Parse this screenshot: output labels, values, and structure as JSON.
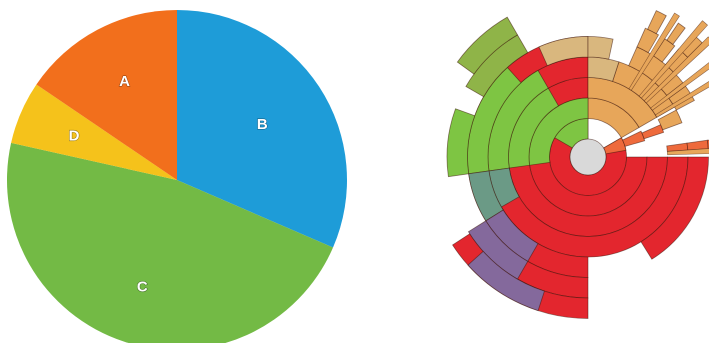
{
  "chart_data": [
    {
      "type": "pie",
      "title": "",
      "categories": [
        "A",
        "B",
        "C",
        "D"
      ],
      "values": [
        15.5,
        31.5,
        47.0,
        6.0
      ],
      "start_angle_deg": 0,
      "slice_order_clockwise": [
        "B",
        "C",
        "D",
        "A"
      ],
      "colors": {
        "A": "#f26f1c",
        "B": "#1e9cd8",
        "C": "#73ba45",
        "D": "#f5c21b"
      }
    },
    {
      "type": "sunburst",
      "title": "",
      "center_color": "#d9d9d9",
      "segments": [
        {
          "ring": 1,
          "start": 60,
          "end": 360,
          "color": "#e3262e"
        },
        {
          "ring": 2,
          "start": 90,
          "end": 360,
          "color": "#e3262e"
        },
        {
          "ring": 3,
          "start": 90,
          "end": 360,
          "color": "#e3262e"
        },
        {
          "ring": 4,
          "start": 90,
          "end": 360,
          "color": "#e3262e"
        },
        {
          "ring": 5,
          "start": 90,
          "end": 148,
          "color": "#e3262e"
        },
        {
          "ring": 5,
          "start": 180,
          "end": 360,
          "color": "#e3262e"
        },
        {
          "ring": 6,
          "start": 180,
          "end": 237,
          "color": "#e3262e"
        },
        {
          "ring": 7,
          "start": 180,
          "end": 237,
          "color": "#e3262e"
        },
        {
          "ring": 1,
          "start": 60,
          "end": 80,
          "color": "#ee6a3c"
        },
        {
          "ring": 2,
          "start": 64,
          "end": 74,
          "color": "#ee6a3c"
        },
        {
          "ring": 3,
          "start": 66,
          "end": 72,
          "color": "#ee6a3c"
        },
        {
          "ring": 4,
          "start": 82,
          "end": 86,
          "color": "#ee6a3c"
        },
        {
          "ring": 5,
          "start": 82,
          "end": 86,
          "color": "#ee6a3c"
        },
        {
          "ring": 6,
          "start": 82,
          "end": 86,
          "color": "#ee6a3c"
        },
        {
          "ring": 7,
          "start": 82,
          "end": 86,
          "color": "#ee6a3c"
        },
        {
          "ring": 2,
          "start": 0,
          "end": 60,
          "color": "#e7a65a"
        },
        {
          "ring": 3,
          "start": 0,
          "end": 60,
          "color": "#e7a65a"
        },
        {
          "ring": 4,
          "start": 18,
          "end": 60,
          "color": "#e7a65a"
        },
        {
          "ring": 5,
          "start": 24,
          "end": 52,
          "color": "#e7a65a"
        },
        {
          "ring": 6,
          "start": 24,
          "end": 30,
          "color": "#e7a65a"
        },
        {
          "ring": 6,
          "start": 33,
          "end": 38,
          "color": "#e7a65a"
        },
        {
          "ring": 6,
          "start": 40,
          "end": 46,
          "color": "#e7a65a"
        },
        {
          "ring": 7,
          "start": 25,
          "end": 29,
          "color": "#e7a65a"
        },
        {
          "ring": 7,
          "start": 41,
          "end": 45,
          "color": "#e7a65a"
        },
        {
          "ring": 7,
          "start": 34,
          "end": 37,
          "color": "#e7a65a"
        },
        {
          "ring": 5,
          "start": 54,
          "end": 62,
          "color": "#e7a65a"
        },
        {
          "ring": 4,
          "start": 62,
          "end": 70,
          "color": "#e7a65a"
        },
        {
          "ring": 4,
          "start": 0,
          "end": 18,
          "color": "#d9b77e"
        },
        {
          "ring": 5,
          "start": 336,
          "end": 360,
          "color": "#d9b77e"
        },
        {
          "ring": 5,
          "start": 0,
          "end": 12,
          "color": "#d9b77e"
        },
        {
          "ring": 1,
          "start": 300,
          "end": 360,
          "color": "#7ec543"
        },
        {
          "ring": 2,
          "start": 262,
          "end": 360,
          "color": "#7ec543"
        },
        {
          "ring": 3,
          "start": 262,
          "end": 330,
          "color": "#7ec543"
        },
        {
          "ring": 4,
          "start": 262,
          "end": 330,
          "color": "#7ec543"
        },
        {
          "ring": 5,
          "start": 262,
          "end": 318,
          "color": "#7ec543"
        },
        {
          "ring": 6,
          "start": 262,
          "end": 290,
          "color": "#7ec543"
        },
        {
          "ring": 6,
          "start": 300,
          "end": 330,
          "color": "#8fb448"
        },
        {
          "ring": 7,
          "start": 306,
          "end": 330,
          "color": "#8fb448"
        },
        {
          "ring": 4,
          "start": 240,
          "end": 262,
          "color": "#6b9a86"
        },
        {
          "ring": 5,
          "start": 238,
          "end": 262,
          "color": "#6b9a86"
        },
        {
          "ring": 5,
          "start": 210,
          "end": 238,
          "color": "#84699c"
        },
        {
          "ring": 6,
          "start": 210,
          "end": 238,
          "color": "#84699c"
        },
        {
          "ring": 7,
          "start": 198,
          "end": 228,
          "color": "#84699c"
        }
      ]
    }
  ]
}
